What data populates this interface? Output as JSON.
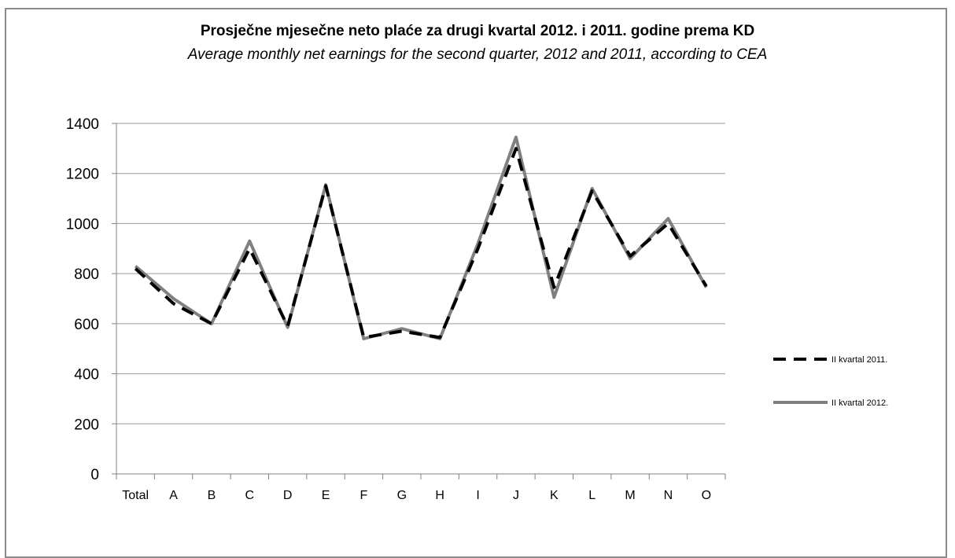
{
  "chart_data": {
    "type": "line",
    "title": "Prosječne mjesečne neto plaće za drugi kvartal 2012. i 2011. godine prema KD",
    "subtitle": "Average monthly net earnings for the second quarter, 2012 and 2011, according to CEA",
    "categories": [
      "Total",
      "A",
      "B",
      "C",
      "D",
      "E",
      "F",
      "G",
      "H",
      "I",
      "J",
      "K",
      "L",
      "M",
      "N",
      "O"
    ],
    "ylim": [
      0,
      1400
    ],
    "yticks": [
      0,
      200,
      400,
      600,
      800,
      1000,
      1200,
      1400
    ],
    "grid": true,
    "legend_position": "right",
    "series": [
      {
        "name": "II kvartal 2011.",
        "style": "dashed",
        "color": "#000000",
        "values": [
          820,
          680,
          600,
          900,
          590,
          1150,
          545,
          570,
          545,
          900,
          1300,
          745,
          1130,
          870,
          1000,
          750
        ]
      },
      {
        "name": "II kvartal 2012.",
        "style": "solid",
        "color": "#808080",
        "values": [
          830,
          700,
          600,
          930,
          585,
          1155,
          540,
          580,
          540,
          920,
          1345,
          705,
          1140,
          860,
          1020,
          745
        ]
      }
    ]
  }
}
